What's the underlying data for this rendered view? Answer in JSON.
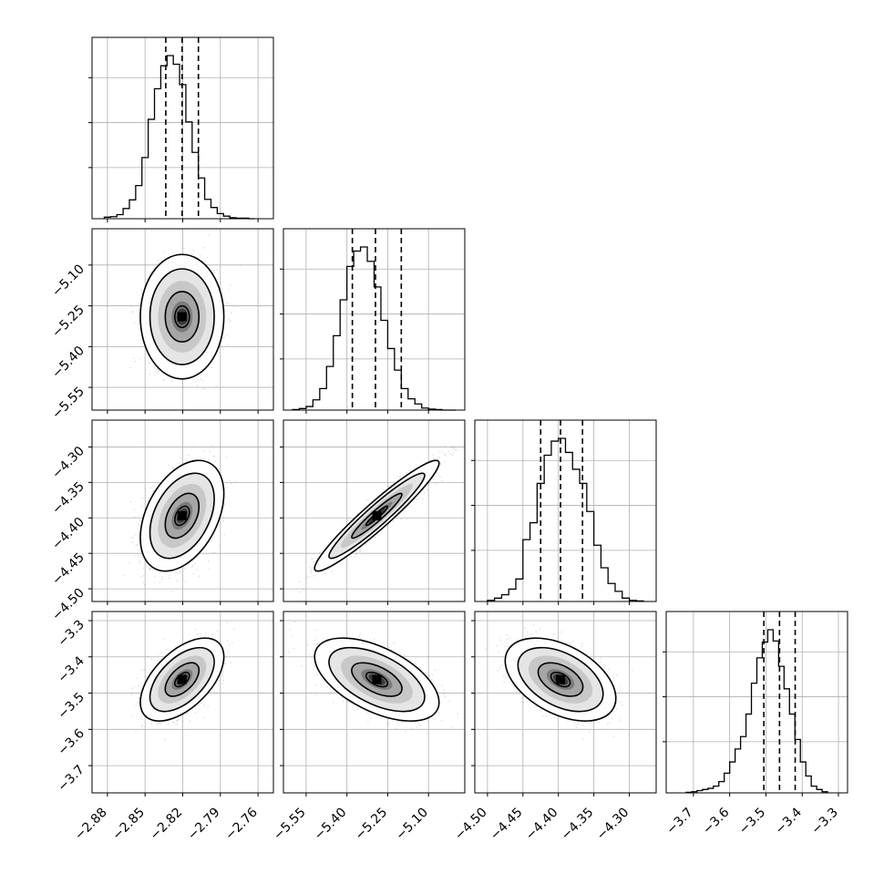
{
  "chart_data": {
    "type": "corner",
    "title": "",
    "parameters": [
      {
        "label": "",
        "axis_range": [
          -2.885,
          -2.755
        ],
        "ticks": [
          -2.88,
          -2.85,
          -2.82,
          -2.79,
          -2.76
        ],
        "tick_labels": [
          "−2.88",
          "−2.85",
          "−2.82",
          "−2.79",
          "−2.76"
        ],
        "quantiles": [
          -2.8335,
          -2.8205,
          -2.8075
        ],
        "mean": -2.8205,
        "std": 0.0128
      },
      {
        "label": "",
        "axis_range": [
          -5.6,
          -5.0
        ],
        "ticks": [
          -5.55,
          -5.4,
          -5.25,
          -5.1
        ],
        "tick_labels": [
          "−5.55",
          "−5.40",
          "−5.25",
          "−5.10"
        ],
        "quantiles": [
          -5.38,
          -5.295,
          -5.2
        ],
        "mean": -5.29,
        "std": 0.088
      },
      {
        "label": "",
        "axis_range": [
          -4.505,
          -4.275
        ],
        "ticks": [
          -4.5,
          -4.45,
          -4.4,
          -4.35,
          -4.3
        ],
        "tick_labels": [
          "−4.50",
          "−4.45",
          "−4.40",
          "−4.35",
          "−4.30"
        ],
        "quantiles": [
          -4.425,
          -4.397,
          -4.366
        ],
        "mean": -4.397,
        "std": 0.03
      },
      {
        "label": "",
        "axis_range": [
          -3.75,
          -3.3
        ],
        "ticks": [
          -3.7,
          -3.6,
          -3.5,
          -3.4,
          -3.3
        ],
        "tick_labels": [
          "−3.7",
          "−3.6",
          "−3.5",
          "−3.4",
          "−3.3"
        ],
        "quantiles": [
          -3.5057,
          -3.4625,
          -3.4193
        ],
        "mean": -3.4625,
        "std": 0.044
      }
    ],
    "histograms": [
      {
        "parameter_index": 0,
        "bins": [
          -2.8825,
          -2.8775,
          -2.8725,
          -2.8675,
          -2.8625,
          -2.8575,
          -2.8525,
          -2.8475,
          -2.8425,
          -2.8375,
          -2.8325,
          -2.8275,
          -2.8225,
          -2.8175,
          -2.8125,
          -2.8075,
          -2.8025,
          -2.7975,
          -2.7925,
          -2.7875,
          -2.7825,
          -2.7775,
          -2.7725,
          -2.7675
        ],
        "counts": [
          3,
          4,
          8,
          20,
          37,
          65,
          120,
          195,
          255,
          300,
          320,
          303,
          263,
          190,
          130,
          80,
          38,
          22,
          10,
          5,
          2,
          1,
          1,
          0
        ]
      },
      {
        "parameter_index": 1,
        "bins": [
          -5.6,
          -5.575,
          -5.55,
          -5.525,
          -5.5,
          -5.475,
          -5.45,
          -5.425,
          -5.4,
          -5.375,
          -5.35,
          -5.325,
          -5.3,
          -5.275,
          -5.25,
          -5.225,
          -5.2,
          -5.175,
          -5.15,
          -5.125,
          -5.1,
          -5.075,
          -5.05,
          -5.025
        ],
        "counts": [
          1,
          3,
          7,
          20,
          42,
          85,
          145,
          215,
          280,
          310,
          318,
          290,
          240,
          175,
          120,
          78,
          42,
          22,
          12,
          4,
          2,
          1,
          0,
          0
        ]
      },
      {
        "parameter_index": 2,
        "bins": [
          -4.5,
          -4.49,
          -4.48,
          -4.47,
          -4.46,
          -4.45,
          -4.44,
          -4.43,
          -4.42,
          -4.41,
          -4.4,
          -4.39,
          -4.38,
          -4.37,
          -4.36,
          -4.35,
          -4.34,
          -4.33,
          -4.32,
          -4.31,
          -4.3,
          -4.29
        ],
        "counts": [
          2,
          6,
          12,
          22,
          40,
          110,
          140,
          210,
          260,
          285,
          290,
          265,
          235,
          210,
          160,
          100,
          60,
          32,
          18,
          6,
          2,
          1
        ]
      },
      {
        "parameter_index": 3,
        "bins": [
          -3.72,
          -3.705,
          -3.69,
          -3.675,
          -3.66,
          -3.645,
          -3.63,
          -3.615,
          -3.6,
          -3.585,
          -3.57,
          -3.555,
          -3.54,
          -3.525,
          -3.51,
          -3.495,
          -3.48,
          -3.465,
          -3.45,
          -3.435,
          -3.42,
          -3.405,
          -3.39,
          -3.375,
          -3.36,
          -3.345
        ],
        "counts": [
          1,
          2,
          4,
          6,
          8,
          12,
          20,
          35,
          55,
          78,
          100,
          140,
          195,
          240,
          268,
          290,
          270,
          225,
          185,
          140,
          95,
          55,
          30,
          12,
          6,
          2
        ]
      }
    ],
    "contour_levels": [
      0.39,
      0.86,
      0.99
    ],
    "correlations": [
      {
        "pair": [
          1,
          0
        ],
        "rho": 0.0
      },
      {
        "pair": [
          2,
          0
        ],
        "rho": 0.4
      },
      {
        "pair": [
          2,
          1
        ],
        "rho": 0.95
      },
      {
        "pair": [
          3,
          0
        ],
        "rho": 0.55
      },
      {
        "pair": [
          3,
          1
        ],
        "rho": -0.55
      },
      {
        "pair": [
          3,
          2
        ],
        "rho": -0.45
      }
    ],
    "grid": true,
    "legend": "none"
  },
  "colors": {
    "background": "#ffffff",
    "frame": "#000000",
    "grid": "#b0b0b0",
    "scatter": "#8a8a8a",
    "density_dark": "#000000",
    "quantile_line": "#000000"
  }
}
